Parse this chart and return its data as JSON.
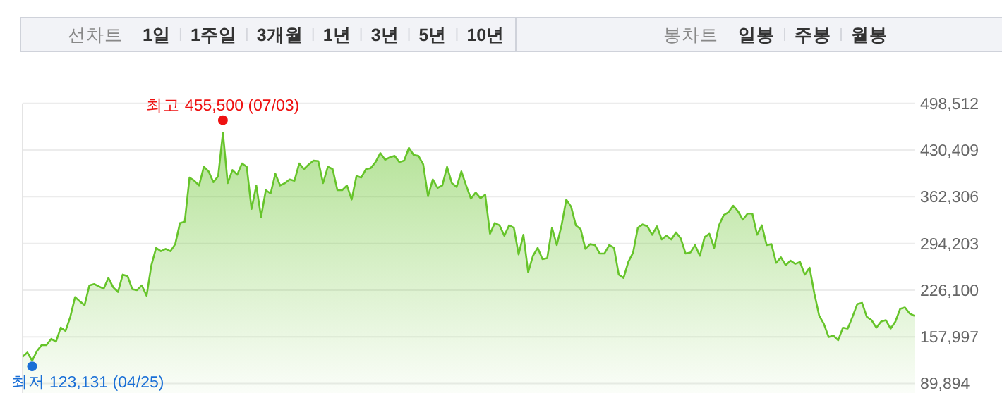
{
  "chart_data": [
    {
      "type": "other",
      "title": "선차트",
      "annotations": [
        "1일",
        "1주일",
        "3개월",
        "1년",
        "3년",
        "5년",
        "10년"
      ]
    },
    {
      "type": "other",
      "title": "봉차트",
      "annotations": [
        "일봉",
        "주봉",
        "월봉"
      ]
    },
    {
      "type": "area",
      "color": "#66c42a",
      "grid": "y",
      "tick_labels": "y",
      "ylim": [
        76000,
        498512
      ],
      "yticks": [
        {
          "value": 89894,
          "label": "89,894"
        },
        {
          "value": 157997,
          "label": "157,997"
        },
        {
          "value": 226100,
          "label": "226,100"
        },
        {
          "value": 294203,
          "label": "294,203"
        },
        {
          "value": 362306,
          "label": "362,306"
        },
        {
          "value": 430409,
          "label": "430,409"
        },
        {
          "value": 498512,
          "label": "498,512"
        }
      ],
      "annotations": [
        {
          "text": "최고 455,500 (07/03)",
          "y": 455500
        },
        "최저 123,131 (04/25)"
      ],
      "categories": [
        null,
        null,
        null,
        null,
        null,
        null,
        null,
        null,
        null,
        null,
        null,
        null,
        null,
        null,
        null,
        null,
        null,
        null,
        null,
        null,
        null,
        null,
        null,
        null,
        null,
        null,
        null,
        null,
        null,
        null,
        null,
        null,
        null,
        null,
        null,
        null,
        null,
        null,
        null,
        null,
        null,
        null,
        null,
        null,
        null,
        null,
        null,
        null,
        null,
        null,
        null,
        null,
        null,
        null,
        null,
        null,
        null,
        null,
        null,
        null,
        null,
        null,
        null,
        null,
        null,
        null,
        null,
        null,
        null,
        null,
        null,
        null,
        null,
        null,
        null,
        null,
        null,
        null,
        null,
        null,
        null,
        null,
        null,
        null,
        null,
        null,
        null,
        null,
        null,
        null,
        null,
        null,
        null,
        null,
        null,
        null,
        null,
        null,
        null,
        null,
        null,
        null,
        null,
        null,
        null,
        null,
        null,
        null,
        null,
        null,
        null,
        null,
        null,
        null,
        null,
        null,
        null,
        null,
        null,
        null,
        null,
        null,
        null,
        null,
        null,
        null,
        null,
        null,
        null,
        null,
        null,
        null,
        null,
        null,
        null,
        null,
        null,
        null,
        null,
        null,
        null,
        null,
        null,
        null,
        null,
        null,
        null,
        null,
        null,
        null,
        null,
        null,
        null,
        null,
        null,
        null,
        null,
        null,
        null,
        null,
        null,
        null,
        null,
        null,
        null,
        null,
        null,
        null,
        null,
        null,
        null,
        null,
        null,
        null,
        null,
        null,
        null,
        null,
        null,
        null,
        null,
        null,
        null,
        null,
        null,
        null,
        null,
        null
      ],
      "values": [
        129000,
        135100,
        123131,
        137100,
        146000,
        146000,
        154900,
        150800,
        171400,
        166600,
        187100,
        215900,
        209700,
        204200,
        233000,
        235000,
        231600,
        228200,
        243900,
        230200,
        223400,
        248700,
        246700,
        227500,
        226100,
        233000,
        217900,
        262400,
        287700,
        282900,
        286300,
        282900,
        293200,
        324000,
        326000,
        390400,
        385600,
        378700,
        406100,
        399300,
        383500,
        392400,
        455500,
        382200,
        401300,
        394500,
        410900,
        406100,
        344500,
        378700,
        332900,
        371900,
        367100,
        395900,
        378700,
        382200,
        387600,
        385600,
        410900,
        402700,
        409500,
        415000,
        414300,
        382200,
        406100,
        402700,
        371900,
        371900,
        378700,
        358200,
        392400,
        390400,
        402700,
        404100,
        412900,
        426000,
        416400,
        419800,
        421900,
        412900,
        415000,
        433500,
        423200,
        421900,
        409500,
        363000,
        387600,
        375300,
        378700,
        406100,
        382200,
        376700,
        399300,
        378700,
        359600,
        368500,
        360300,
        365100,
        308300,
        324000,
        320600,
        305500,
        320600,
        317100,
        278100,
        306900,
        252100,
        276100,
        287700,
        271300,
        272700,
        317100,
        291800,
        320600,
        358200,
        347900,
        320600,
        315100,
        286300,
        293200,
        291800,
        279500,
        279500,
        291800,
        287700,
        248700,
        243900,
        267200,
        280900,
        317100,
        321900,
        319200,
        306900,
        319200,
        300000,
        305500,
        300000,
        310300,
        301400,
        279500,
        280900,
        291800,
        276100,
        303500,
        308300,
        287700,
        320600,
        335600,
        339700,
        349300,
        341100,
        328800,
        337700,
        337700,
        306900,
        320600,
        291800,
        293200,
        265800,
        274000,
        262400,
        269200,
        264400,
        267200,
        248700,
        258900,
        221300,
        189200,
        176800,
        157700,
        159700,
        152900,
        171400,
        170000,
        187100,
        205600,
        207600,
        187100,
        182300,
        171400,
        180300,
        182300,
        170000,
        180300,
        198800,
        200800,
        191900,
        188500
      ]
    }
  ]
}
